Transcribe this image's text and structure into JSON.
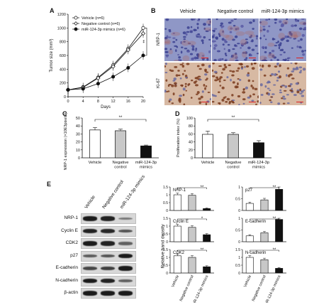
{
  "panels": {
    "A": {
      "label": "A",
      "chart_data": {
        "type": "line",
        "x": [
          0,
          4,
          8,
          12,
          16,
          20
        ],
        "xlabel": "Days",
        "ylabel": "Tumor size (mm³)",
        "xlim": [
          0,
          20
        ],
        "ylim": [
          0,
          1200
        ],
        "xticks": [
          "0",
          "4",
          "8",
          "12",
          "16",
          "20"
        ],
        "yticks": [
          "0",
          "200",
          "400",
          "600",
          "800",
          "1000",
          "1200"
        ],
        "series": [
          {
            "name": "Vehicle (n=6)",
            "marker": "open-circle",
            "values": [
              100,
              140,
              280,
              460,
              700,
              1000
            ]
          },
          {
            "name": "Negative control (n=6)",
            "marker": "open-diamond",
            "values": [
              100,
              135,
              270,
              440,
              680,
              920
            ]
          },
          {
            "name": "miR-124-3p mimics (n=6)",
            "marker": "filled-circle",
            "values": [
              100,
              115,
              190,
              290,
              420,
              600
            ]
          }
        ],
        "annotation": "**"
      }
    },
    "B": {
      "label": "B",
      "columns": [
        "Vehicle",
        "Negative control",
        "miR-124-3p mimics"
      ],
      "rows": [
        "NRP-1",
        "Ki-67"
      ]
    },
    "C": {
      "label": "C",
      "chart_data": {
        "type": "bar",
        "categories": [
          "Vehicle",
          "Negative control",
          "miR-124-3p mimics"
        ],
        "values": [
          35,
          34,
          15
        ],
        "errors": [
          3,
          2,
          1
        ],
        "colors": [
          "#ffffff",
          "#c8c8c8",
          "#111111"
        ],
        "ylabel": "NRP-1 expression (×10E3pixels/μm²)",
        "ylim": [
          0,
          50
        ],
        "yticks": [
          "0",
          "10",
          "20",
          "30",
          "40",
          "50"
        ],
        "annotation": "**"
      }
    },
    "D": {
      "label": "D",
      "chart_data": {
        "type": "bar",
        "categories": [
          "Vehicle",
          "Negative control",
          "miR-124-3p mimics"
        ],
        "values": [
          59,
          59,
          38
        ],
        "errors": [
          8,
          4,
          5
        ],
        "colors": [
          "#ffffff",
          "#c8c8c8",
          "#111111"
        ],
        "ylabel": "Proliferation index (%)",
        "ylim": [
          0,
          100
        ],
        "yticks": [
          "0",
          "20",
          "40",
          "60",
          "80",
          "100"
        ],
        "annotation": "**"
      }
    },
    "E": {
      "label": "E",
      "lanes": [
        "Vehicle",
        "Negative control",
        "miR-124-3p mimics"
      ],
      "blot_rows": [
        {
          "label": "NRP-1",
          "levels": [
            1.0,
            0.95,
            0.35
          ]
        },
        {
          "label": "Cyclin E",
          "levels": [
            0.95,
            0.9,
            0.6
          ]
        },
        {
          "label": "CDK2",
          "levels": [
            1.0,
            0.95,
            0.5
          ]
        },
        {
          "label": "p27",
          "levels": [
            0.55,
            0.6,
            1.0
          ]
        },
        {
          "label": "E-cadherin",
          "levels": [
            0.7,
            0.75,
            1.0
          ]
        },
        {
          "label": "N-cadherin",
          "levels": [
            1.0,
            0.95,
            0.5
          ]
        },
        {
          "label": "β-actin",
          "levels": [
            1.0,
            1.0,
            1.0
          ]
        }
      ],
      "ylabel": "Relative band density",
      "chart_data": [
        {
          "type": "bar",
          "title": "NRP-1",
          "categories": [
            "Vehicle",
            "Negative control",
            "miR-124-3p mimics"
          ],
          "values": [
            1.0,
            0.97,
            0.12
          ],
          "ylim": [
            0,
            1.5
          ],
          "yticks": [
            "0",
            "0.5",
            "1",
            "1.5"
          ],
          "annotation": "**"
        },
        {
          "type": "bar",
          "title": "p27",
          "categories": [
            "Vehicle",
            "Negative control",
            "miR-124-3p mimics"
          ],
          "values": [
            0.3,
            0.45,
            0.9
          ],
          "ylim": [
            0,
            1
          ],
          "yticks": [
            "0",
            "0.5",
            "1"
          ],
          "annotation": "**"
        },
        {
          "type": "bar",
          "title": "Cyclin E",
          "categories": [
            "Vehicle",
            "Negative control",
            "miR-124-3p mimics"
          ],
          "values": [
            1.0,
            0.92,
            0.45
          ],
          "ylim": [
            0,
            1.5
          ],
          "yticks": [
            "0",
            "0.5",
            "1",
            "1.5"
          ],
          "annotation": "*"
        },
        {
          "type": "bar",
          "title": "E-cadherin",
          "categories": [
            "Vehicle",
            "Negative control",
            "miR-124-3p mimics"
          ],
          "values": [
            0.25,
            0.38,
            0.95
          ],
          "ylim": [
            0,
            1
          ],
          "yticks": [
            "0",
            "0.5",
            "1"
          ],
          "annotation": "**"
        },
        {
          "type": "bar",
          "title": "CDK2",
          "categories": [
            "Vehicle",
            "Negative control",
            "miR-124-3p mimics"
          ],
          "values": [
            1.1,
            1.0,
            0.4
          ],
          "ylim": [
            0,
            1.5
          ],
          "yticks": [
            "0",
            "0.5",
            "1",
            "1.5"
          ],
          "annotation": "**"
        },
        {
          "type": "bar",
          "title": "N-cadherin",
          "categories": [
            "Vehicle",
            "Negative control",
            "miR-124-3p mimics"
          ],
          "values": [
            1.0,
            0.85,
            0.3
          ],
          "ylim": [
            0,
            1.5
          ],
          "yticks": [
            "0",
            "0.5",
            "1",
            "1.5"
          ],
          "annotation": "**"
        }
      ]
    }
  }
}
